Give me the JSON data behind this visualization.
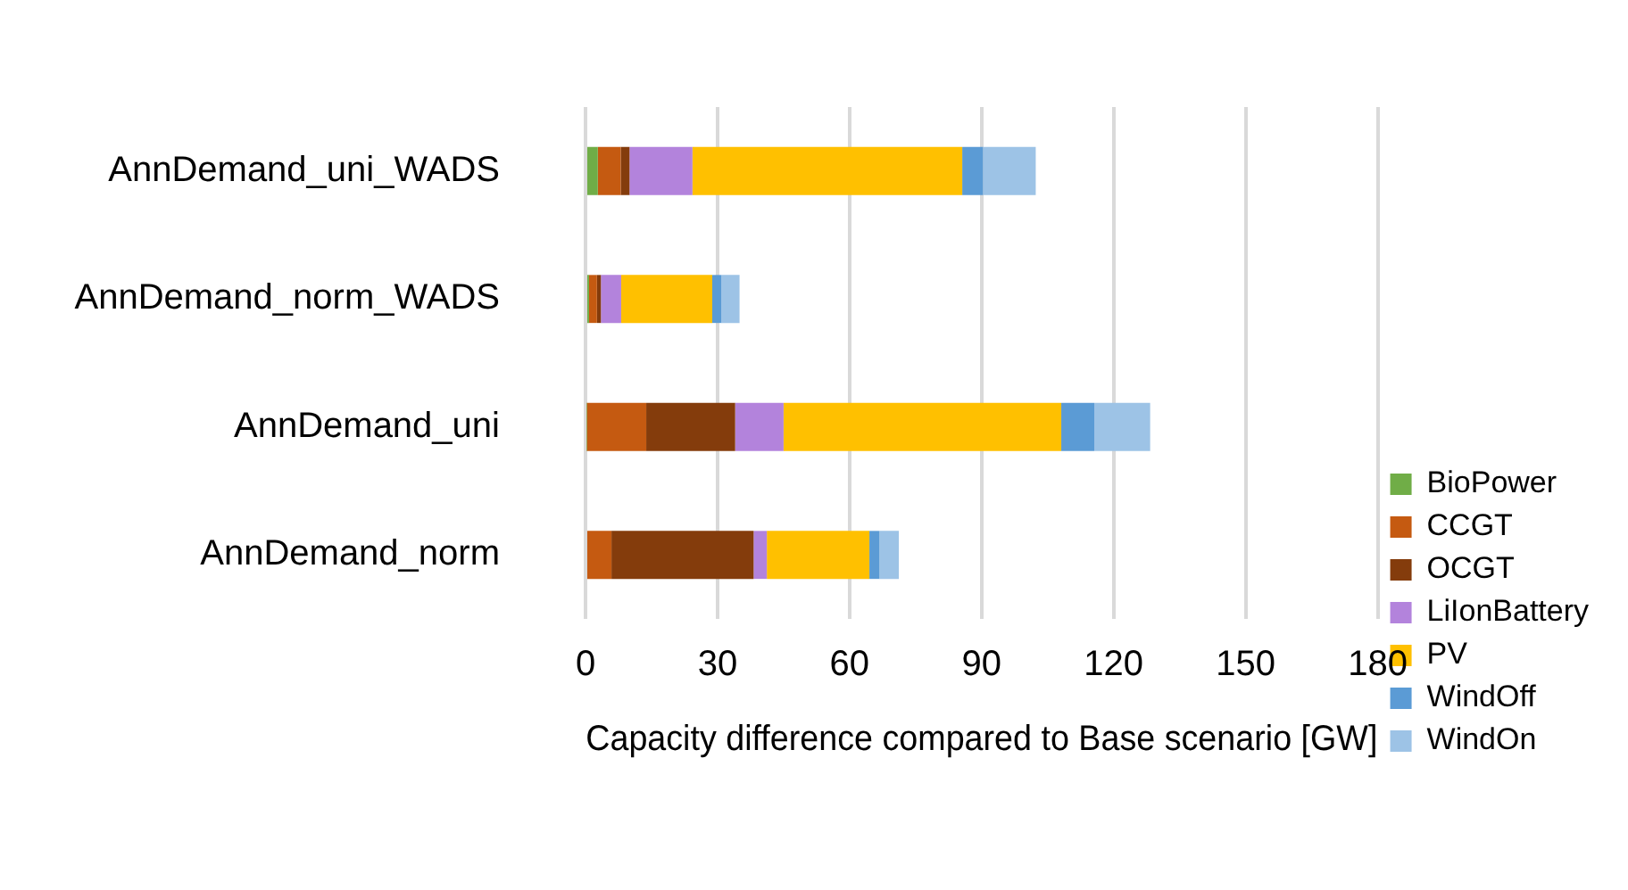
{
  "chart_data": {
    "type": "bar",
    "orientation": "horizontal",
    "stacked": true,
    "xlabel": "Capacity difference compared to Base scenario [GW]",
    "categories": [
      "AnnDemand_uni_WADS",
      "AnnDemand_norm_WADS",
      "AnnDemand_uni",
      "AnnDemand_norm"
    ],
    "series": [
      {
        "name": "BioPower",
        "color": "#70ad47",
        "values": [
          2.8,
          0.8,
          0.3,
          0
        ]
      },
      {
        "name": "CCGT",
        "color": "#c55a11",
        "values": [
          5.2,
          1.8,
          13.5,
          5.9
        ]
      },
      {
        "name": "OCGT",
        "color": "#843c0c",
        "values": [
          2.0,
          0.9,
          20.2,
          32.3
        ]
      },
      {
        "name": "LiIonBattery",
        "color": "#b383dc",
        "values": [
          14.3,
          4.6,
          11.0,
          3.0
        ]
      },
      {
        "name": "PV",
        "color": "#ffc000",
        "values": [
          61.3,
          20.7,
          63.1,
          23.3
        ]
      },
      {
        "name": "WindOff",
        "color": "#5b9bd5",
        "values": [
          4.7,
          2.1,
          7.5,
          2.3
        ]
      },
      {
        "name": "WindOn",
        "color": "#9dc3e6",
        "values": [
          12.0,
          4.1,
          12.7,
          4.4
        ]
      }
    ],
    "xlim": [
      0,
      180
    ],
    "xticks": [
      0,
      30,
      60,
      90,
      120,
      150,
      180
    ],
    "grid": "x",
    "legend": "right"
  }
}
